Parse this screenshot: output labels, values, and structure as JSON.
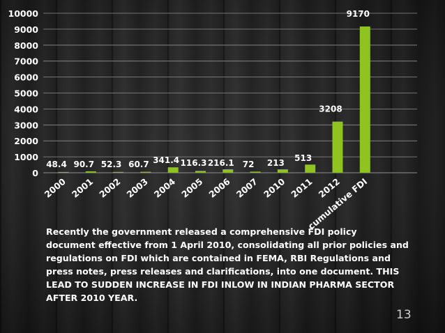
{
  "slide": {
    "caption": " Recently the government released a comprehensive FDI policy document effective from 1 April 2010, consolidating all prior policies and regulations on FDI which are contained in FEMA,  RBI Regulations and press notes, press releases and clarifications, into one document. THIS LEAD TO SUDDEN INCREASE IN FDI INLOW IN INDIAN PHARMA SECTOR AFTER 2010 YEAR.",
    "page_number": "13"
  },
  "colors": {
    "bar": "#8fc320",
    "grid": "#8f8f8f",
    "text": "#ffffff"
  },
  "chart_data": {
    "type": "bar",
    "title": "",
    "xlabel": "",
    "ylabel": "",
    "categories": [
      "2000",
      "2001",
      "2002",
      "2003",
      "2004",
      "2005",
      "2006",
      "2007",
      "2010",
      "2011",
      "2012",
      "cumulative FDI"
    ],
    "values": [
      48.4,
      90.7,
      52.3,
      60.7,
      341.4,
      116.3,
      216.1,
      72,
      213,
      513,
      3208,
      9170
    ],
    "data_labels": [
      "48.4",
      "90.7",
      "52.3",
      "60.7",
      "341.4",
      "116.3",
      "216.1",
      "72",
      "213",
      "513",
      "3208",
      "9170"
    ],
    "ylim": [
      0,
      10000
    ],
    "yticks": [
      "0",
      "1000",
      "2000",
      "3000",
      "4000",
      "5000",
      "6000",
      "7000",
      "8000",
      "9000",
      "10000"
    ],
    "grid": true,
    "legend": "none"
  }
}
